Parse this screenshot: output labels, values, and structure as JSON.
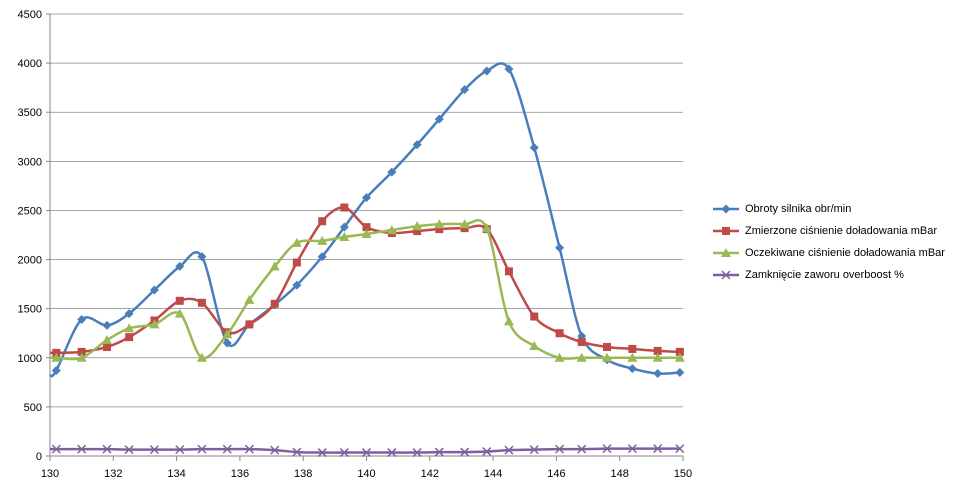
{
  "chart_data": {
    "type": "line",
    "title": "",
    "xlabel": "",
    "ylabel": "",
    "xlim": [
      130,
      150
    ],
    "ylim": [
      0,
      4500
    ],
    "x_ticks": [
      "130",
      "132",
      "134",
      "136",
      "138",
      "140",
      "142",
      "144",
      "146",
      "148",
      "150"
    ],
    "y_ticks": [
      "0",
      "500",
      "1000",
      "1500",
      "2000",
      "2500",
      "3000",
      "3500",
      "4000",
      "4500"
    ],
    "grid": "horizontal",
    "legend_position": "right",
    "series": [
      {
        "name": "Obroty silnika obr/min",
        "color": "#4a7ebb",
        "marker": "diamond",
        "x": [
          130.2,
          131.0,
          131.8,
          132.5,
          133.3,
          134.1,
          134.8,
          135.6,
          136.3,
          137.1,
          137.8,
          138.6,
          139.3,
          140.0,
          140.8,
          141.6,
          142.3,
          143.1,
          143.8,
          144.5,
          145.3,
          146.1,
          146.8,
          147.6,
          148.4,
          149.2,
          149.9
        ],
        "y": [
          870,
          1390,
          1330,
          1450,
          1690,
          1930,
          2030,
          1150,
          1340,
          1540,
          1740,
          2030,
          2330,
          2630,
          2890,
          3170,
          3430,
          3730,
          3920,
          3940,
          3140,
          2120,
          1220,
          980,
          890,
          840,
          850
        ]
      },
      {
        "name": "Zmierzone ciśnienie doładowania mBar",
        "color": "#be4b48",
        "marker": "square",
        "x": [
          130.2,
          131.0,
          131.8,
          132.5,
          133.3,
          134.1,
          134.8,
          135.6,
          136.3,
          137.1,
          137.8,
          138.6,
          139.3,
          140.0,
          140.8,
          141.6,
          142.3,
          143.1,
          143.8,
          144.5,
          145.3,
          146.1,
          146.8,
          147.6,
          148.4,
          149.2,
          149.9
        ],
        "y": [
          1050,
          1060,
          1110,
          1210,
          1380,
          1580,
          1560,
          1260,
          1340,
          1550,
          1970,
          2390,
          2530,
          2330,
          2270,
          2290,
          2310,
          2320,
          2310,
          1880,
          1420,
          1250,
          1160,
          1110,
          1090,
          1070,
          1060
        ]
      },
      {
        "name": "Oczekiwane ciśnienie doładowania mBar",
        "color": "#98b954",
        "marker": "triangle",
        "x": [
          130.2,
          131.0,
          131.8,
          132.5,
          133.3,
          134.1,
          134.8,
          135.6,
          136.3,
          137.1,
          137.8,
          138.6,
          139.3,
          140.0,
          140.8,
          141.6,
          142.3,
          143.1,
          143.8,
          144.5,
          145.3,
          146.1,
          146.8,
          147.6,
          148.4,
          149.2,
          149.9
        ],
        "y": [
          1000,
          1000,
          1180,
          1300,
          1340,
          1450,
          1000,
          1240,
          1590,
          1930,
          2170,
          2190,
          2230,
          2260,
          2300,
          2340,
          2360,
          2360,
          2320,
          1370,
          1120,
          1000,
          1000,
          1000,
          1000,
          1000,
          1000
        ]
      },
      {
        "name": "Zamknięcie zaworu overboost %",
        "color": "#7d60a0",
        "marker": "x",
        "x": [
          130.2,
          131.0,
          131.8,
          132.5,
          133.3,
          134.1,
          134.8,
          135.6,
          136.3,
          137.1,
          137.8,
          138.6,
          139.3,
          140.0,
          140.8,
          141.6,
          142.3,
          143.1,
          143.8,
          144.5,
          145.3,
          146.1,
          146.8,
          147.6,
          148.4,
          149.2,
          149.9
        ],
        "y": [
          70,
          70,
          70,
          65,
          65,
          65,
          70,
          70,
          70,
          60,
          40,
          35,
          35,
          35,
          35,
          35,
          40,
          40,
          45,
          60,
          65,
          70,
          70,
          75,
          75,
          75,
          75
        ]
      }
    ]
  }
}
